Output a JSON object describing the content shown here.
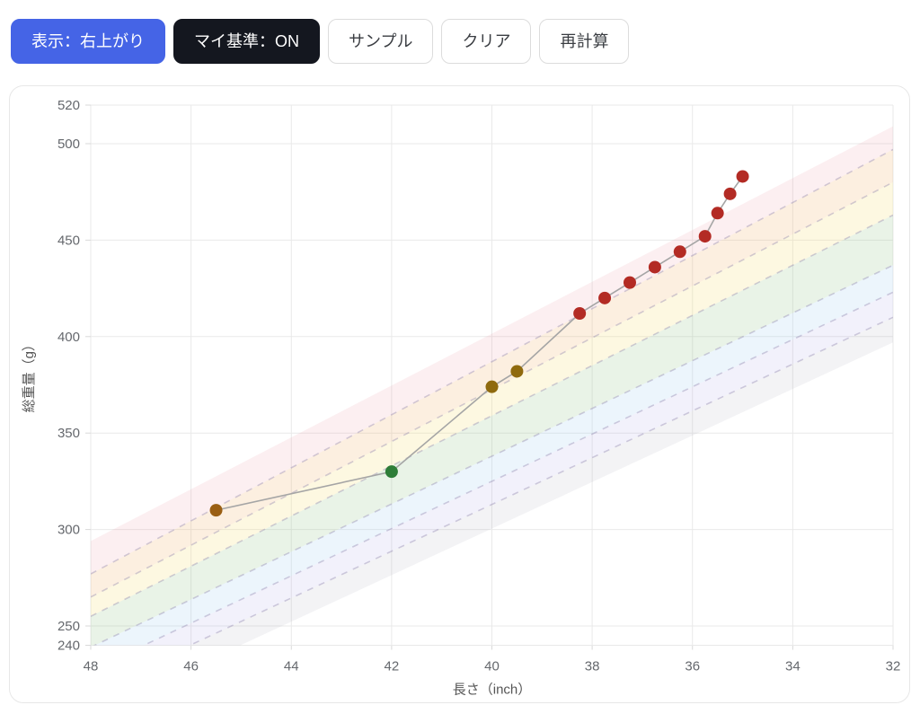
{
  "toolbar": {
    "buttons": [
      {
        "id": "display-mode",
        "label": "表示：右上がり",
        "style": "primary"
      },
      {
        "id": "my-standard",
        "label": "マイ基準：ON",
        "style": "dark"
      },
      {
        "id": "sample",
        "label": "サンプル",
        "style": "outline"
      },
      {
        "id": "clear",
        "label": "クリア",
        "style": "outline"
      },
      {
        "id": "recalculate",
        "label": "再計算",
        "style": "outline"
      }
    ]
  },
  "colors": {
    "primary_button": "#4564e6",
    "dark_button": "#14171f",
    "card_border": "#e7e7e7",
    "grid_line": "#e9e9e9",
    "tick_label": "#65686d",
    "axis_title": "#555555",
    "series_line": "#a5a5a5",
    "boundary_dash": "rgba(140,130,170,0.38)"
  },
  "chart_data": {
    "type": "scatter",
    "title": "",
    "xlabel": "長さ（inch）",
    "ylabel": "総重量（g）",
    "x_range": [
      48,
      32
    ],
    "y_range": [
      240,
      520
    ],
    "x_ticks": [
      48,
      46,
      44,
      42,
      40,
      38,
      36,
      34,
      32
    ],
    "y_ticks": [
      240,
      250,
      300,
      350,
      400,
      450,
      500,
      520
    ],
    "x_axis_reversed": true,
    "grid": true,
    "legend": false,
    "points": [
      {
        "x": 45.5,
        "y": 310,
        "color": "#9a5f13"
      },
      {
        "x": 42.0,
        "y": 330,
        "color": "#2e7d38"
      },
      {
        "x": 40.0,
        "y": 374,
        "color": "#8f6a0e"
      },
      {
        "x": 39.5,
        "y": 382,
        "color": "#8f6a0e"
      },
      {
        "x": 38.25,
        "y": 412,
        "color": "#b32b24"
      },
      {
        "x": 37.75,
        "y": 420,
        "color": "#b32b24"
      },
      {
        "x": 37.25,
        "y": 428,
        "color": "#b32b24"
      },
      {
        "x": 36.75,
        "y": 436,
        "color": "#b32b24"
      },
      {
        "x": 36.25,
        "y": 444,
        "color": "#b32b24"
      },
      {
        "x": 35.75,
        "y": 452,
        "color": "#b32b24"
      },
      {
        "x": 35.5,
        "y": 464,
        "color": "#b32b24"
      },
      {
        "x": 35.25,
        "y": 474,
        "color": "#b32b24"
      },
      {
        "x": 35.0,
        "y": 483,
        "color": "#b32b24"
      }
    ],
    "bands": {
      "note": "diagonal reference zones; boundary lines given as weight(g) at length 48in and 32in, top to bottom",
      "boundaries_g_at_48": [
        294,
        277,
        265,
        255,
        239,
        227,
        216,
        204
      ],
      "boundaries_g_at_32": [
        509,
        497,
        480,
        463,
        437,
        423,
        410,
        397
      ],
      "zone_colors": [
        "rgba(235,150,160,0.15)",
        "rgba(240,175,100,0.20)",
        "rgba(245,225,120,0.22)",
        "rgba(145,195,135,0.20)",
        "rgba(150,200,240,0.18)",
        "rgba(170,160,230,0.15)",
        "rgba(160,160,170,0.12)"
      ],
      "dashed_internal_boundaries": [
        1,
        2,
        3,
        4,
        5,
        6
      ]
    }
  }
}
